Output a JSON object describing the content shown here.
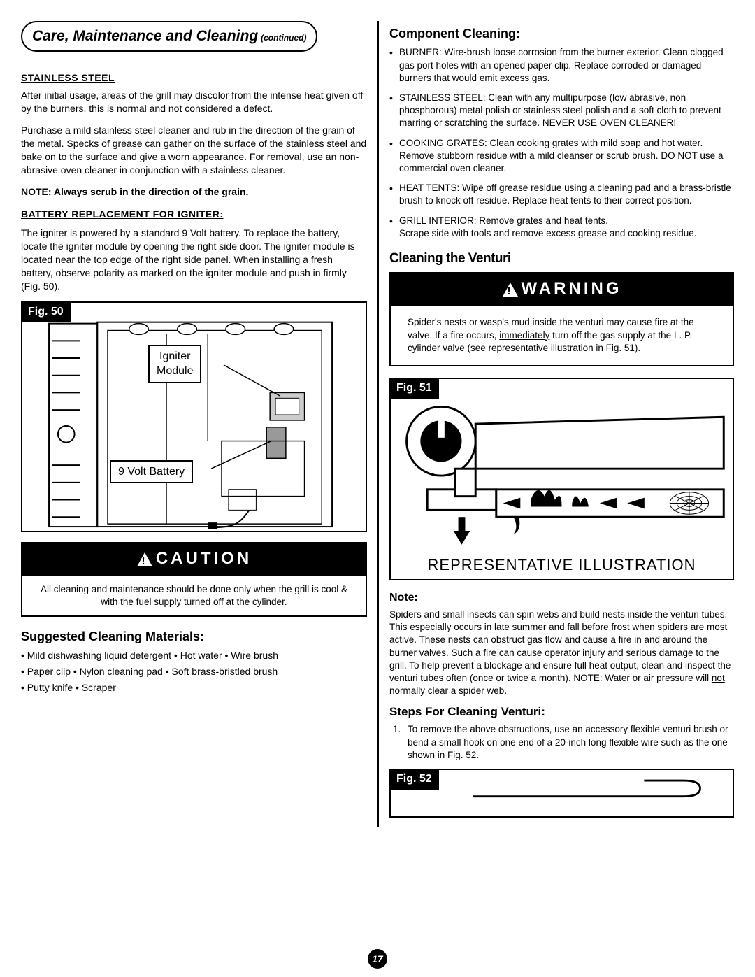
{
  "section_title": {
    "main": "Care, Maintenance and Cleaning",
    "cont": "(continued)"
  },
  "left": {
    "stainless": {
      "heading": "STAINLESS STEEL",
      "p1": "After initial usage, areas of the grill may discolor from the intense heat given off by the burners, this is normal and not considered a defect.",
      "p2": "Purchase a mild stainless steel cleaner and rub in the direction of the grain of the metal. Specks of grease can gather on the surface of the stainless steel and bake on to the surface and give a worn appearance. For removal, use an non-abrasive oven cleaner in conjunction with a stainless cleaner.",
      "note": "NOTE: Always scrub in the direction of the grain."
    },
    "battery": {
      "heading": "BATTERY REPLACEMENT FOR IGNITER:",
      "p": "The igniter is powered by a standard 9 Volt battery.  To replace the battery, locate the igniter module by opening the right side door. The igniter module is located near the top edge of the right side panel. When installing a fresh battery, observe polarity as marked on the igniter module and push in firmly (Fig. 50)."
    },
    "fig50": {
      "label": "Fig. 50",
      "callout_igniter": "Igniter\nModule",
      "callout_battery": "9 Volt Battery"
    },
    "caution": {
      "title": "CAUTION",
      "body": "All cleaning and maintenance should be done only when the grill is cool & with the fuel supply turned off at the cylinder."
    },
    "materials": {
      "heading": "Suggested Cleaning Materials:",
      "line1": "•  Mild dishwashing liquid detergent  •  Hot water  •  Wire brush",
      "line2": "•  Paper clip  •  Nylon cleaning pad  •  Soft brass-bristled brush",
      "line3": "•  Putty knife  •  Scraper"
    }
  },
  "right": {
    "component": {
      "heading": "Component Cleaning:",
      "items": [
        "BURNER: Wire-brush loose corrosion from the burner exterior. Clean clogged gas port holes with an opened paper clip. Replace corroded or damaged burners that would emit excess gas.",
        "STAINLESS STEEL: Clean with any multipurpose (low abrasive, non phosphorous) metal polish or stainless steel polish and a soft cloth to prevent marring or scratching the surface. NEVER USE OVEN CLEANER!",
        "COOKING GRATES: Clean cooking grates with mild soap and hot water. Remove stubborn residue with a mild cleanser or scrub brush. DO NOT use a commercial oven cleaner.",
        "HEAT TENTS: Wipe off grease residue using a cleaning pad and a brass-bristle brush to knock off residue. Replace heat tents to their correct position.",
        "GRILL INTERIOR: Remove grates and heat tents.\nScrape side with tools and remove excess grease and cooking residue."
      ]
    },
    "venturi_heading": "Cleaning the Venturi",
    "warning": {
      "title": "WARNING",
      "body": "Spider's nests or wasp's mud inside the venturi may cause fire at the valve. If a fire occurs, immediately turn off the gas supply at the L. P. cylinder valve (see representative illustration in Fig. 51).",
      "underline_word": "immediately"
    },
    "fig51": {
      "label": "Fig. 51",
      "caption": "REPRESENTATIVE ILLUSTRATION"
    },
    "note": {
      "heading": "Note:",
      "body": "Spiders and small insects can spin webs and build nests inside the venturi tubes. This especially occurs in late summer and fall before frost when spiders are most active. These nests can obstruct gas flow and cause a fire in and around the burner valves. Such a fire can cause operator injury and serious damage to the grill. To help prevent a blockage and ensure full heat output, clean and inspect the venturi tubes often (once or twice a month). NOTE: Water or air pressure will not normally clear a spider web.",
      "underline_word": "not"
    },
    "steps": {
      "heading": "Steps For Cleaning Venturi:",
      "item1": "To remove the above obstructions, use an accessory flexible venturi brush or bend a small hook on one end of a 20-inch long flexible wire such as the one shown in Fig. 52."
    },
    "fig52": {
      "label": "Fig. 52"
    }
  },
  "page_number": "17"
}
